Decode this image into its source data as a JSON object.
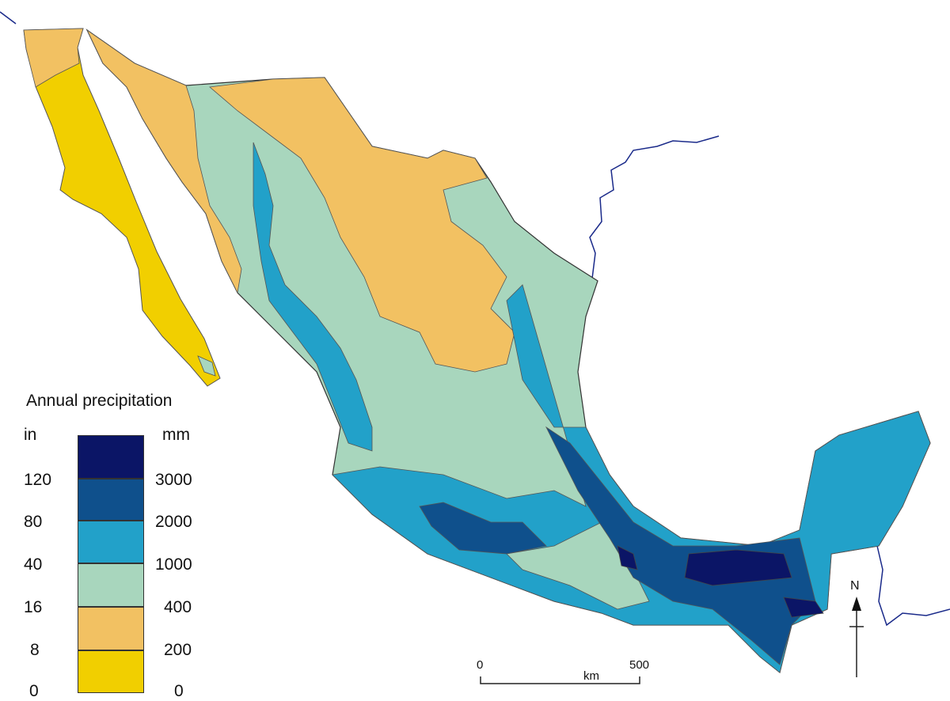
{
  "legend": {
    "title": "Annual precipitation",
    "unit_left": "in",
    "unit_right": "mm",
    "classes": [
      {
        "in": "120",
        "mm": "3000",
        "color": "#0b1566"
      },
      {
        "in": "80",
        "mm": "2000",
        "color": "#0f508c"
      },
      {
        "in": "40",
        "mm": "1000",
        "color": "#22a1c9"
      },
      {
        "in": "16",
        "mm": "400",
        "color": "#a8d6bd"
      },
      {
        "in": "8",
        "mm": "200",
        "color": "#f2c162"
      },
      {
        "in": "0",
        "mm": "0",
        "color": "#f1cf00"
      }
    ],
    "top_color": "#0b1566"
  },
  "scale_bar": {
    "start": "0",
    "end": "500",
    "unit": "km"
  },
  "north_arrow": {
    "label": "N"
  }
}
